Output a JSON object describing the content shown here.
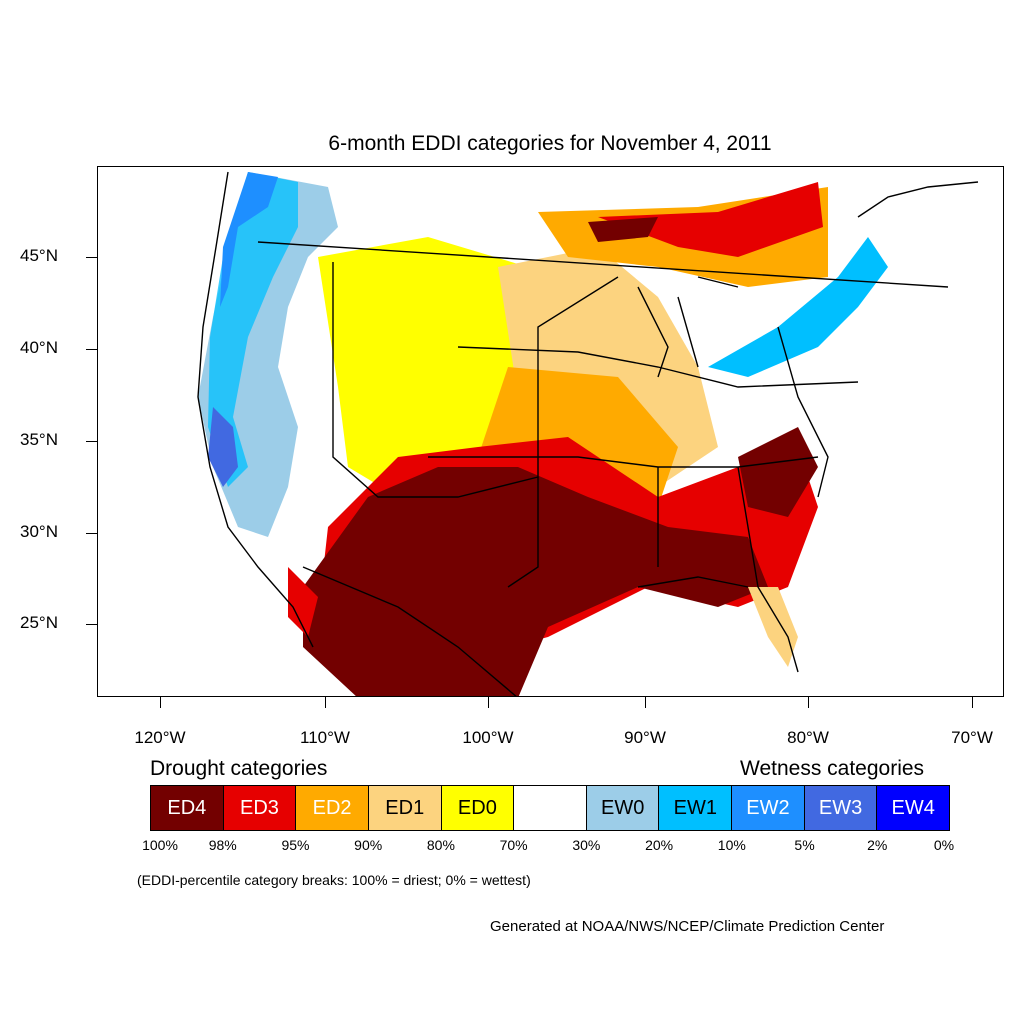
{
  "title": "6-month EDDI categories for November 4, 2011",
  "lat_labels": [
    "45°N",
    "40°N",
    "35°N",
    "30°N",
    "25°N"
  ],
  "lon_labels": [
    "120°W",
    "110°W",
    "100°W",
    "90°W",
    "80°W",
    "70°W"
  ],
  "legend": {
    "drought_heading": "Drought categories",
    "wetness_heading": "Wetness categories",
    "categories": [
      {
        "label": "ED4",
        "color": "#730000",
        "text_color": "#ffffff"
      },
      {
        "label": "ED3",
        "color": "#e60000",
        "text_color": "#ffffff"
      },
      {
        "label": "ED2",
        "color": "#ffaa00",
        "text_color": "#ffffff"
      },
      {
        "label": "ED1",
        "color": "#fcd37f",
        "text_color": "#000000"
      },
      {
        "label": "ED0",
        "color": "#ffff00",
        "text_color": "#000000"
      },
      {
        "label": "",
        "color": "#ffffff",
        "text_color": "#000000"
      },
      {
        "label": "EW0",
        "color": "#9ccde8",
        "text_color": "#000000"
      },
      {
        "label": "EW1",
        "color": "#00bfff",
        "text_color": "#000000"
      },
      {
        "label": "EW2",
        "color": "#1e8fff",
        "text_color": "#ffffff"
      },
      {
        "label": "EW3",
        "color": "#4169e1",
        "text_color": "#ffffff"
      },
      {
        "label": "EW4",
        "color": "#0000ff",
        "text_color": "#ffffff"
      }
    ],
    "percent_breaks": [
      "100%",
      "98%",
      "95%",
      "90%",
      "80%",
      "70%",
      "30%",
      "20%",
      "10%",
      "5%",
      "2%",
      "0%"
    ]
  },
  "note": "(EDDI-percentile category breaks: 100% = driest; 0% = wettest)",
  "credit": "Generated at NOAA/NWS/NCEP/Climate Prediction Center"
}
